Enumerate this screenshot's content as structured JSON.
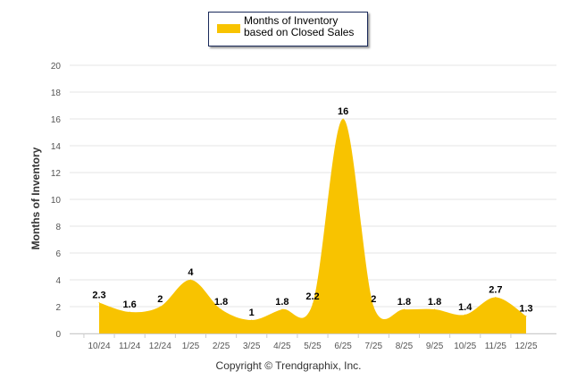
{
  "chart_data": {
    "type": "area",
    "title": "",
    "legend": {
      "label": "Months of Inventory based on Closed Sales",
      "placement": "top",
      "color": "#F8C300"
    },
    "ylabel": "Months of Inventory",
    "xlabel": "",
    "ylim": [
      0,
      20
    ],
    "yticks": [
      0,
      2,
      4,
      6,
      8,
      10,
      12,
      14,
      16,
      18,
      20
    ],
    "grid": true,
    "categories": [
      "10/24",
      "11/24",
      "12/24",
      "1/25",
      "2/25",
      "3/25",
      "4/25",
      "5/25",
      "6/25",
      "7/25",
      "8/25",
      "9/25",
      "10/25",
      "11/25",
      "12/25"
    ],
    "series": [
      {
        "name": "Months of Inventory based on Closed Sales",
        "values": [
          2.3,
          1.6,
          2,
          4,
          1.8,
          1,
          1.8,
          2.2,
          16,
          2,
          1.8,
          1.8,
          1.4,
          2.7,
          1.3
        ],
        "labels": [
          "2.3",
          "1.6",
          "2",
          "4",
          "1.8",
          "1",
          "1.8",
          "2.2",
          "16",
          "2",
          "1.8",
          "1.8",
          "1.4",
          "2.7",
          "1.3"
        ]
      }
    ]
  },
  "copyright": "Copyright © Trendgraphix, Inc."
}
